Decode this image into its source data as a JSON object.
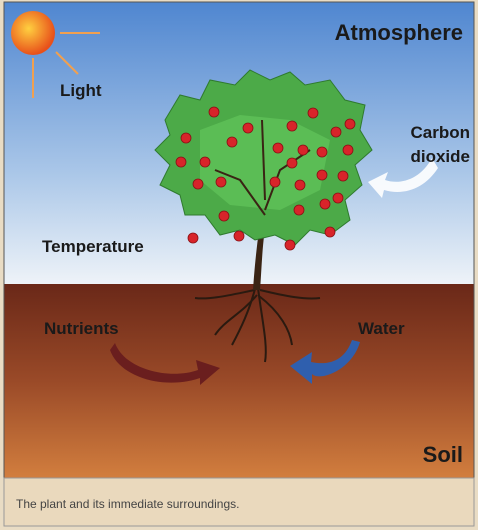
{
  "labels": {
    "atmosphere": "Atmosphere",
    "light": "Light",
    "carbon_dioxide": [
      "Carbon",
      "dioxide"
    ],
    "temperature": "Temperature",
    "nutrients": "Nutrients",
    "water": "Water",
    "soil": "Soil"
  },
  "caption": "The plant and its immediate surroundings."
}
